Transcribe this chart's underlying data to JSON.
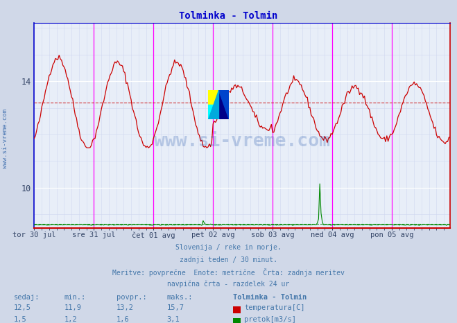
{
  "title": "Tolminka - Tolmin",
  "title_color": "#0000cc",
  "bg_color": "#d0d8e8",
  "plot_bg_color": "#e8eef8",
  "grid_color": "#ffffff",
  "grid_minor_color": "#d0d8f0",
  "x_tick_labels": [
    "tor 30 jul",
    "sre 31 jul",
    "čet 01 avg",
    "pet 02 avg",
    "sob 03 avg",
    "ned 04 avg",
    "pon 05 avg"
  ],
  "y_ticks": [
    10,
    14
  ],
  "y_min": 8.5,
  "y_max": 16.2,
  "temp_color": "#cc0000",
  "pretok_color": "#008800",
  "avg_temp": 13.2,
  "watermark_text": "www.si-vreme.com",
  "watermark_color": "#2255aa",
  "watermark_alpha": 0.25,
  "footer_lines": [
    "Slovenija / reke in morje.",
    "zadnji teden / 30 minut.",
    "Meritve: povprečne  Enote: metrične  Črta: zadnja meritev",
    "navpična črta - razdelek 24 ur"
  ],
  "footer_color": "#4477aa",
  "table_headers": [
    "sedaj:",
    "min.:",
    "povpr.:",
    "maks.:",
    "Tolminka - Tolmin"
  ],
  "table_row1": [
    "12,5",
    "11,9",
    "13,2",
    "15,7"
  ],
  "table_row2": [
    "1,5",
    "1,2",
    "1,6",
    "3,1"
  ],
  "table_label1": "temperatura[C]",
  "table_label2": "pretok[m3/s]",
  "n_points": 336,
  "magenta_line_color": "#ff00ff",
  "blue_border_color": "#0000cc",
  "red_border_color": "#cc0000"
}
